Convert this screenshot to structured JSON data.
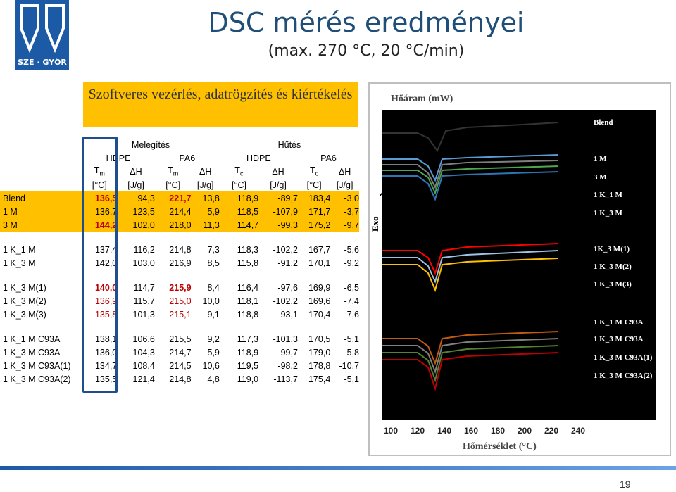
{
  "logo_text": "SZE · GYŐR",
  "title": "DSC mérés eredményei",
  "subtitle": "(max. 270 °C, 20 °C/min)",
  "yellow_box": "Szoftveres vezérlés, adatrögzítés és kiértékelés",
  "table": {
    "group_headers": {
      "heating": "Melegítés",
      "cooling": "Hűtés"
    },
    "sub_headers": [
      "HDPE",
      "PA6",
      "HDPE",
      "PA6"
    ],
    "col_headers": [
      "T",
      "ΔH",
      "T",
      "ΔH",
      "T",
      "ΔH",
      "T",
      "ΔH"
    ],
    "col_subscripts": [
      "m",
      "",
      "m",
      "",
      "c",
      "",
      "c",
      ""
    ],
    "units": [
      "[°C]",
      "[J/g]",
      "[°C]",
      "[J/g]",
      "[°C]",
      "[J/g]",
      "[°C]",
      "[J/g]"
    ],
    "groups": [
      {
        "rows": [
          [
            "Blend",
            "136,5",
            "94,3",
            "221,7",
            "13,8",
            "118,9",
            "-89,7",
            "183,4",
            "-3,0"
          ],
          [
            "1 M",
            "136,7",
            "123,5",
            "214,4",
            "5,9",
            "118,5",
            "-107,9",
            "171,7",
            "-3,7"
          ],
          [
            "3 M",
            "144,2",
            "102,0",
            "218,0",
            "11,3",
            "114,7",
            "-99,3",
            "175,2",
            "-9,7"
          ]
        ]
      },
      {
        "rows": [
          [
            "1 K_1 M",
            "137,4",
            "116,2",
            "214,8",
            "7,3",
            "118,3",
            "-102,2",
            "167,7",
            "-5,6"
          ],
          [
            "1 K_3 M",
            "142,0",
            "103,0",
            "216,9",
            "8,5",
            "115,8",
            "-91,2",
            "170,1",
            "-9,2"
          ]
        ]
      },
      {
        "rows": [
          [
            "1 K_3 M(1)",
            "140,0",
            "114,7",
            "215,9",
            "8,4",
            "116,4",
            "-97,6",
            "169,9",
            "-6,5"
          ],
          [
            "1 K_3 M(2)",
            "136,9",
            "115,7",
            "215,0",
            "10,0",
            "118,1",
            "-102,2",
            "169,6",
            "-7,4"
          ],
          [
            "1 K_3 M(3)",
            "135,8",
            "101,3",
            "215,1",
            "9,1",
            "118,8",
            "-93,1",
            "170,4",
            "-7,6"
          ]
        ]
      },
      {
        "rows": [
          [
            "1 K_1 M C93A",
            "138,1",
            "106,6",
            "215,5",
            "9,2",
            "117,3",
            "-101,3",
            "170,5",
            "-5,1"
          ],
          [
            "1 K_3 M C93A",
            "136,0",
            "104,3",
            "214,7",
            "5,9",
            "118,9",
            "-99,7",
            "179,0",
            "-5,8"
          ],
          [
            "1 K_3 M C93A(1)",
            "134,7",
            "108,4",
            "214,5",
            "10,6",
            "119,5",
            "-98,2",
            "178,8",
            "-10,7"
          ],
          [
            "1 K_3 M C93A(2)",
            "135,5",
            "121,4",
            "214,8",
            "4,8",
            "119,0",
            "-113,7",
            "175,4",
            "-5,1"
          ]
        ]
      }
    ],
    "colors": {
      "yellow": "#ffc000",
      "red": "#c00000",
      "blue_highlight": "#1f4e8c"
    }
  },
  "chart": {
    "ylabel": "Hőáram (mW)",
    "exo_label": "Exo",
    "xlabel": "Hőmérséklet (°C)",
    "x_ticks": [
      "100",
      "120",
      "140",
      "160",
      "180",
      "200",
      "220",
      "240"
    ],
    "legend": [
      "Blend",
      "1 M",
      "3 M",
      "1 K_1 M",
      "1 K_3 M",
      "1K_3 M(1)",
      "1 K_3 M(2)",
      "1 K_3 M(3)",
      "1 K_1 M C93A",
      "1 K_3 M C93A",
      "1 K_3 M C93A(1)",
      "1 K_3 M C93A(2)"
    ]
  },
  "page_number": "19"
}
